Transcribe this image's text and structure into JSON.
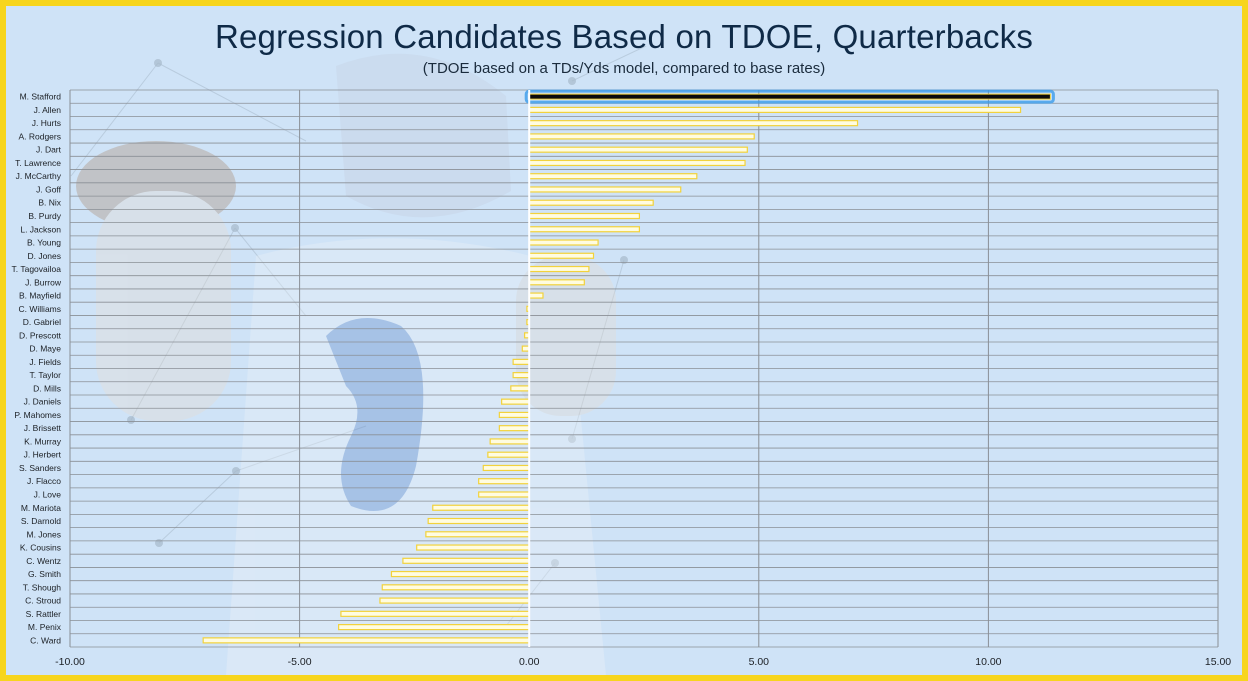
{
  "chart_data": {
    "type": "bar",
    "orientation": "horizontal",
    "title": "Regression Candidates Based on TDOE, Quarterbacks",
    "subtitle": "(TDOE based on a TDs/Yds model, compared to base rates)",
    "xlim": [
      -10,
      15
    ],
    "x_ticks": [
      -10,
      -5,
      0,
      5,
      10,
      15
    ],
    "x_tick_labels": [
      "-10.00",
      "-5.00",
      "0.00",
      "5.00",
      "10.00",
      "15.00"
    ],
    "grid": true,
    "highlighted_category": "M. Stafford",
    "categories": [
      "M. Stafford",
      "J. Allen",
      "J. Hurts",
      "A. Rodgers",
      "J. Dart",
      "T. Lawrence",
      "J. McCarthy",
      "J. Goff",
      "B. Nix",
      "B. Purdy",
      "L. Jackson",
      "B. Young",
      "D. Jones",
      "T. Tagovailoa",
      "J. Burrow",
      "B. Mayfield",
      "C. Williams",
      "D. Gabriel",
      "D. Prescott",
      "D. Maye",
      "J. Fields",
      "T. Taylor",
      "D. Mills",
      "J. Daniels",
      "P. Mahomes",
      "J. Brissett",
      "K. Murray",
      "J. Herbert",
      "S. Sanders",
      "J. Flacco",
      "J. Love",
      "M. Mariota",
      "S. Darnold",
      "M. Jones",
      "K. Cousins",
      "C. Wentz",
      "G. Smith",
      "T. Shough",
      "C. Stroud",
      "S. Rattler",
      "M. Penix",
      "C. Ward"
    ],
    "values": [
      11.35,
      10.7,
      7.15,
      4.9,
      4.75,
      4.7,
      3.65,
      3.3,
      2.7,
      2.4,
      2.4,
      1.5,
      1.4,
      1.3,
      1.2,
      0.3,
      -0.05,
      -0.05,
      -0.1,
      -0.15,
      -0.35,
      -0.35,
      -0.4,
      -0.6,
      -0.65,
      -0.65,
      -0.85,
      -0.9,
      -1.0,
      -1.1,
      -1.1,
      -2.1,
      -2.2,
      -2.25,
      -2.45,
      -2.75,
      -3.0,
      -3.2,
      -3.25,
      -4.1,
      -4.15,
      -7.1
    ]
  },
  "colors": {
    "frame": "#f7d51d",
    "background": "#cfe3f7",
    "bar_fill": "#fffce0",
    "bar_outline": "#f2d23c",
    "highlight_fill": "#0b0b0b",
    "highlight_glow": "#3a9bea",
    "grid": "#8a8f96",
    "text": "#0f2a47"
  }
}
